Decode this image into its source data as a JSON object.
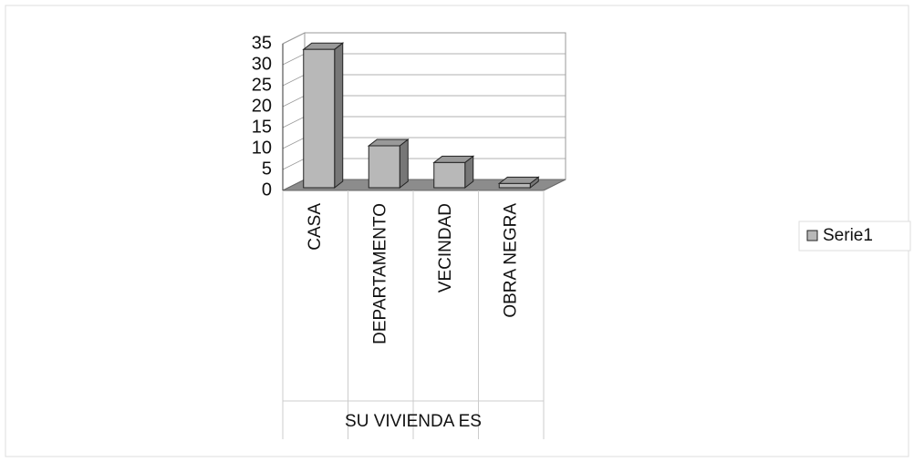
{
  "chart_data": {
    "type": "bar3d",
    "categories": [
      "CASA",
      "DEPARTAMENTO",
      "VECINDAD",
      "OBRA NEGRA"
    ],
    "xlabel": "SU VIVIENDA ES",
    "series": [
      {
        "name": "Serie1",
        "color": "#b8b8b8",
        "values": [
          33,
          10,
          6,
          1
        ]
      }
    ],
    "ylim": [
      0,
      35
    ],
    "yticks": [
      0,
      5,
      10,
      15,
      20,
      25,
      30,
      35
    ],
    "grid": true,
    "legend": "right"
  }
}
